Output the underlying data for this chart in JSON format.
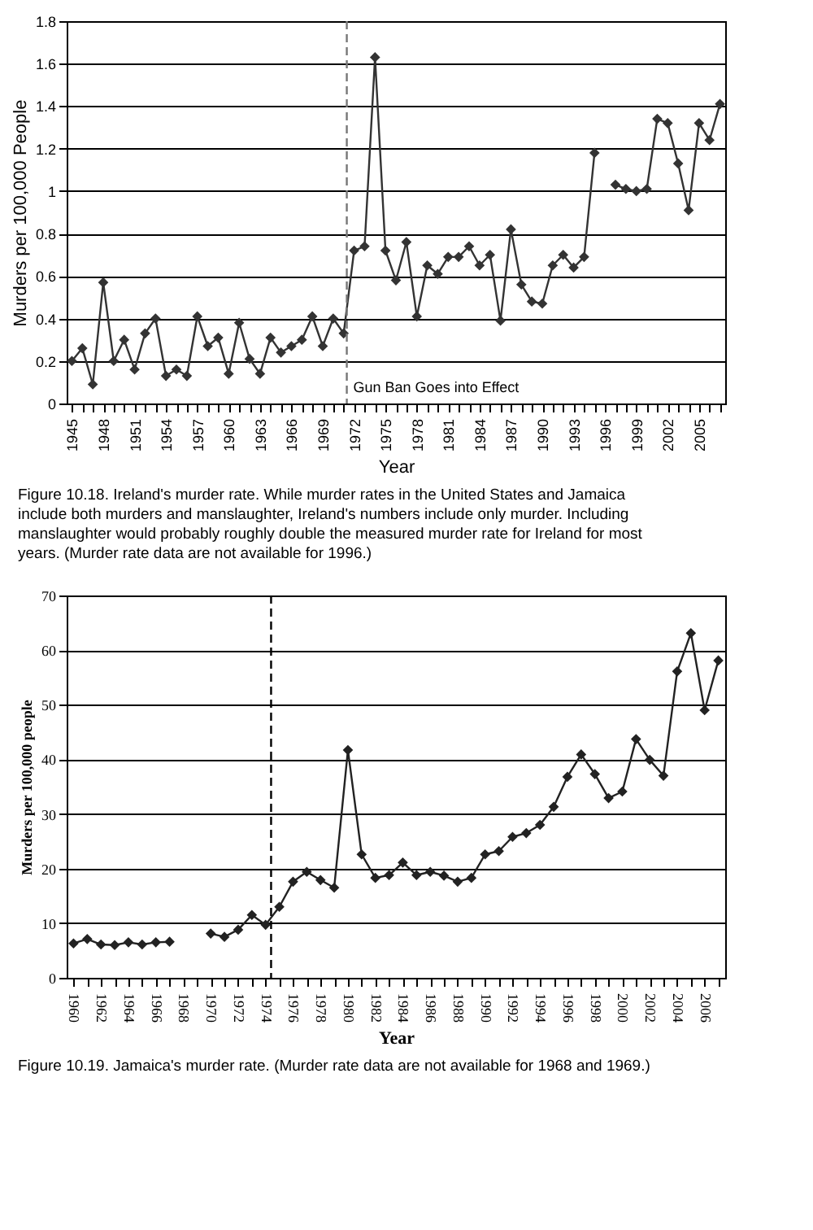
{
  "chart_data": [
    {
      "type": "line",
      "xlabel": "Year",
      "ylabel": "Murders per 100,000 People",
      "marker": "diamond",
      "line_style": "solid",
      "grid": "y",
      "x": [
        1945,
        1946,
        1947,
        1948,
        1949,
        1950,
        1951,
        1952,
        1953,
        1954,
        1955,
        1956,
        1957,
        1958,
        1959,
        1960,
        1961,
        1962,
        1963,
        1964,
        1965,
        1966,
        1967,
        1968,
        1969,
        1970,
        1971,
        1972,
        1973,
        1974,
        1975,
        1976,
        1977,
        1978,
        1979,
        1980,
        1981,
        1982,
        1983,
        1984,
        1985,
        1986,
        1987,
        1988,
        1989,
        1990,
        1991,
        1992,
        1993,
        1994,
        1995,
        1996,
        1997,
        1998,
        1999,
        2000,
        2001,
        2002,
        2003,
        2004,
        2005,
        2006,
        2007
      ],
      "series": [
        {
          "color": "#333333",
          "values": [
            0.2,
            0.26,
            0.09,
            0.57,
            0.2,
            0.3,
            0.16,
            0.33,
            0.4,
            0.13,
            0.16,
            0.13,
            0.41,
            0.27,
            0.31,
            0.14,
            0.38,
            0.21,
            0.14,
            0.31,
            0.24,
            0.27,
            0.3,
            0.41,
            0.27,
            0.4,
            0.33,
            0.72,
            0.74,
            1.63,
            0.72,
            0.58,
            0.76,
            0.41,
            0.65,
            0.61,
            0.69,
            0.69,
            0.74,
            0.65,
            0.7,
            0.39,
            0.82,
            0.56,
            0.48,
            0.47,
            0.65,
            0.7,
            0.64,
            0.69,
            1.18,
            null,
            1.03,
            1.01,
            1.0,
            1.01,
            1.34,
            1.32,
            1.13,
            0.91,
            1.32,
            1.24,
            1.41
          ]
        }
      ],
      "xlim": [
        1944.5,
        2007.5
      ],
      "xticks": [
        1945,
        {
          "value": 1946,
          "label": null
        },
        {
          "value": 1947,
          "label": null
        },
        1948,
        {
          "value": 1949,
          "label": null
        },
        {
          "value": 1950,
          "label": null
        },
        1951,
        {
          "value": 1952,
          "label": null
        },
        {
          "value": 1953,
          "label": null
        },
        1954,
        {
          "value": 1955,
          "label": null
        },
        {
          "value": 1956,
          "label": null
        },
        1957,
        {
          "value": 1958,
          "label": null
        },
        {
          "value": 1959,
          "label": null
        },
        1960,
        {
          "value": 1961,
          "label": null
        },
        {
          "value": 1962,
          "label": null
        },
        1963,
        {
          "value": 1964,
          "label": null
        },
        {
          "value": 1965,
          "label": null
        },
        1966,
        {
          "value": 1967,
          "label": null
        },
        {
          "value": 1968,
          "label": null
        },
        1969,
        {
          "value": 1970,
          "label": null
        },
        {
          "value": 1971,
          "label": null
        },
        1972,
        {
          "value": 1973,
          "label": null
        },
        {
          "value": 1974,
          "label": null
        },
        1975,
        {
          "value": 1976,
          "label": null
        },
        {
          "value": 1977,
          "label": null
        },
        1978,
        {
          "value": 1979,
          "label": null
        },
        {
          "value": 1980,
          "label": null
        },
        1981,
        {
          "value": 1982,
          "label": null
        },
        {
          "value": 1983,
          "label": null
        },
        1984,
        {
          "value": 1985,
          "label": null
        },
        {
          "value": 1986,
          "label": null
        },
        1987,
        {
          "value": 1988,
          "label": null
        },
        {
          "value": 1989,
          "label": null
        },
        1990,
        {
          "value": 1991,
          "label": null
        },
        {
          "value": 1992,
          "label": null
        },
        1993,
        {
          "value": 1994,
          "label": null
        },
        {
          "value": 1995,
          "label": null
        },
        1996,
        {
          "value": 1997,
          "label": null
        },
        {
          "value": 1998,
          "label": null
        },
        1999,
        {
          "value": 2000,
          "label": null
        },
        {
          "value": 2001,
          "label": null
        },
        2002,
        {
          "value": 2003,
          "label": null
        },
        {
          "value": 2004,
          "label": null
        },
        2005,
        {
          "value": 2006,
          "label": null
        },
        {
          "value": 2007,
          "label": null
        }
      ],
      "ylim": [
        0,
        1.8
      ],
      "yticks": [
        0,
        0.2,
        0.4,
        0.6,
        0.8,
        1,
        1.2,
        1.4,
        1.6,
        1.8
      ],
      "ref_lines": [
        {
          "axis": "x",
          "value": 1971.3,
          "label": "Gun Ban Goes into Effect",
          "line_style": "dashed",
          "color": "#777777"
        }
      ],
      "annotations": [
        "Figure 10.18. Ireland's murder rate. While murder rates in the United States and Jamaica include both murders and manslaughter, Ireland's numbers include only murder. Including manslaughter would probably roughly double the measured murder rate for Ireland for most years. (Murder rate data are not available for 1996.)"
      ]
    },
    {
      "type": "line",
      "xlabel": "Year",
      "ylabel": "Murders per 100,000 people",
      "marker": "diamond",
      "line_style": "solid",
      "grid": "y",
      "x": [
        1960,
        1961,
        1962,
        1963,
        1964,
        1965,
        1966,
        1967,
        1968,
        1969,
        1970,
        1971,
        1972,
        1973,
        1974,
        1975,
        1976,
        1977,
        1978,
        1979,
        1980,
        1981,
        1982,
        1983,
        1984,
        1985,
        1986,
        1987,
        1988,
        1989,
        1990,
        1991,
        1992,
        1993,
        1994,
        1995,
        1996,
        1997,
        1998,
        1999,
        2000,
        2001,
        2002,
        2003,
        2004,
        2005,
        2006,
        2007
      ],
      "series": [
        {
          "color": "#222222",
          "values": [
            6.3,
            7.1,
            6.1,
            6.0,
            6.5,
            6.1,
            6.5,
            6.6,
            null,
            null,
            8.1,
            7.5,
            8.8,
            11.5,
            9.7,
            13.0,
            17.6,
            19.4,
            17.9,
            16.5,
            41.7,
            22.6,
            18.3,
            18.8,
            21.1,
            18.8,
            19.4,
            18.7,
            17.6,
            18.3,
            22.6,
            23.2,
            25.8,
            26.5,
            28.0,
            31.3,
            36.8,
            40.9,
            37.3,
            32.9,
            34.1,
            43.7,
            39.9,
            37.0,
            56.1,
            63.1,
            49.0,
            58.1
          ]
        }
      ],
      "xlim": [
        1959.5,
        2007.5
      ],
      "xticks": [
        1960,
        {
          "value": 1961,
          "label": null
        },
        1962,
        {
          "value": 1963,
          "label": null
        },
        1964,
        {
          "value": 1965,
          "label": null
        },
        1966,
        {
          "value": 1967,
          "label": null
        },
        1968,
        {
          "value": 1969,
          "label": null
        },
        1970,
        {
          "value": 1971,
          "label": null
        },
        1972,
        {
          "value": 1973,
          "label": null
        },
        1974,
        {
          "value": 1975,
          "label": null
        },
        1976,
        {
          "value": 1977,
          "label": null
        },
        1978,
        {
          "value": 1979,
          "label": null
        },
        1980,
        {
          "value": 1981,
          "label": null
        },
        1982,
        {
          "value": 1983,
          "label": null
        },
        1984,
        {
          "value": 1985,
          "label": null
        },
        1986,
        {
          "value": 1987,
          "label": null
        },
        1988,
        {
          "value": 1989,
          "label": null
        },
        1990,
        {
          "value": 1991,
          "label": null
        },
        1992,
        {
          "value": 1993,
          "label": null
        },
        1994,
        {
          "value": 1995,
          "label": null
        },
        1996,
        {
          "value": 1997,
          "label": null
        },
        1998,
        {
          "value": 1999,
          "label": null
        },
        2000,
        {
          "value": 2001,
          "label": null
        },
        2002,
        {
          "value": 2003,
          "label": null
        },
        2004,
        {
          "value": 2005,
          "label": null
        },
        2006,
        {
          "value": 2007,
          "label": null
        }
      ],
      "ylim": [
        0,
        70
      ],
      "yticks": [
        0,
        10,
        20,
        30,
        40,
        50,
        60,
        70
      ],
      "ref_lines": [
        {
          "axis": "x",
          "value": 1974.4,
          "line_style": "dashed",
          "color": "#000000"
        }
      ],
      "annotations": [
        "Figure 10.19. Jamaica's murder rate. (Murder rate data are not available for 1968 and 1969.)"
      ]
    }
  ]
}
